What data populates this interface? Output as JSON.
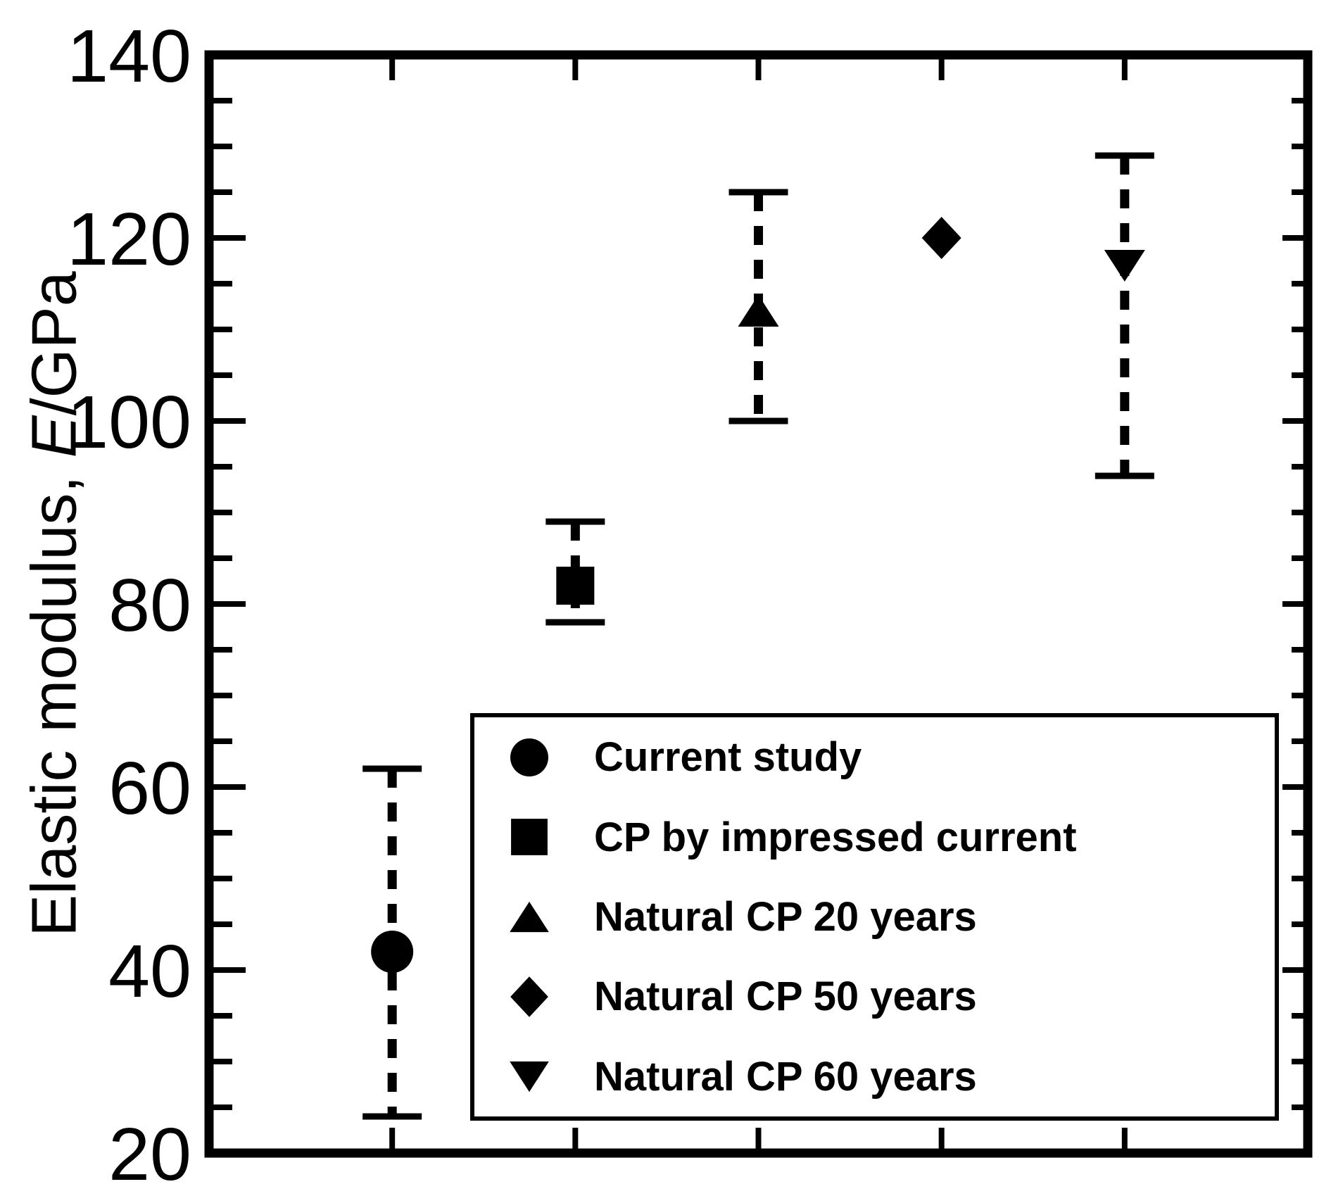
{
  "figure": {
    "background_color": "#ffffff",
    "ink_color": "#000000"
  },
  "chart_data": {
    "type": "scatter",
    "title": "",
    "xlabel": "",
    "ylabel": "Elastic modulus, E/GPa",
    "ylabel_parts": {
      "prefix": "Elastic modulus, ",
      "symbol": "E",
      "suffix": "/GPa"
    },
    "ylim": [
      20,
      140
    ],
    "y_major_ticks": [
      20,
      40,
      60,
      80,
      100,
      120,
      140
    ],
    "y_minor_tick_step": 5,
    "x_slot_count": 6,
    "x_tick_labels": [
      "",
      "",
      "",
      "",
      ""
    ],
    "grid": false,
    "error_bar_style": "dashed",
    "legend_position": "inside-lower-right",
    "series": [
      {
        "name": "Current study",
        "marker": "circle",
        "x_slot": 1,
        "y": 42,
        "err_low": 24,
        "err_high": 62
      },
      {
        "name": "CP by impressed current",
        "marker": "square",
        "x_slot": 2,
        "y": 82,
        "err_low": 78,
        "err_high": 89
      },
      {
        "name": "Natural CP 20 years",
        "marker": "triangle-up",
        "x_slot": 3,
        "y": 112,
        "err_low": 100,
        "err_high": 125
      },
      {
        "name": "Natural CP 50 years",
        "marker": "diamond",
        "x_slot": 4,
        "y": 120,
        "err_low": null,
        "err_high": null
      },
      {
        "name": "Natural CP 60 years",
        "marker": "triangle-down",
        "x_slot": 5,
        "y": 117,
        "err_low": 94,
        "err_high": 129
      }
    ]
  }
}
